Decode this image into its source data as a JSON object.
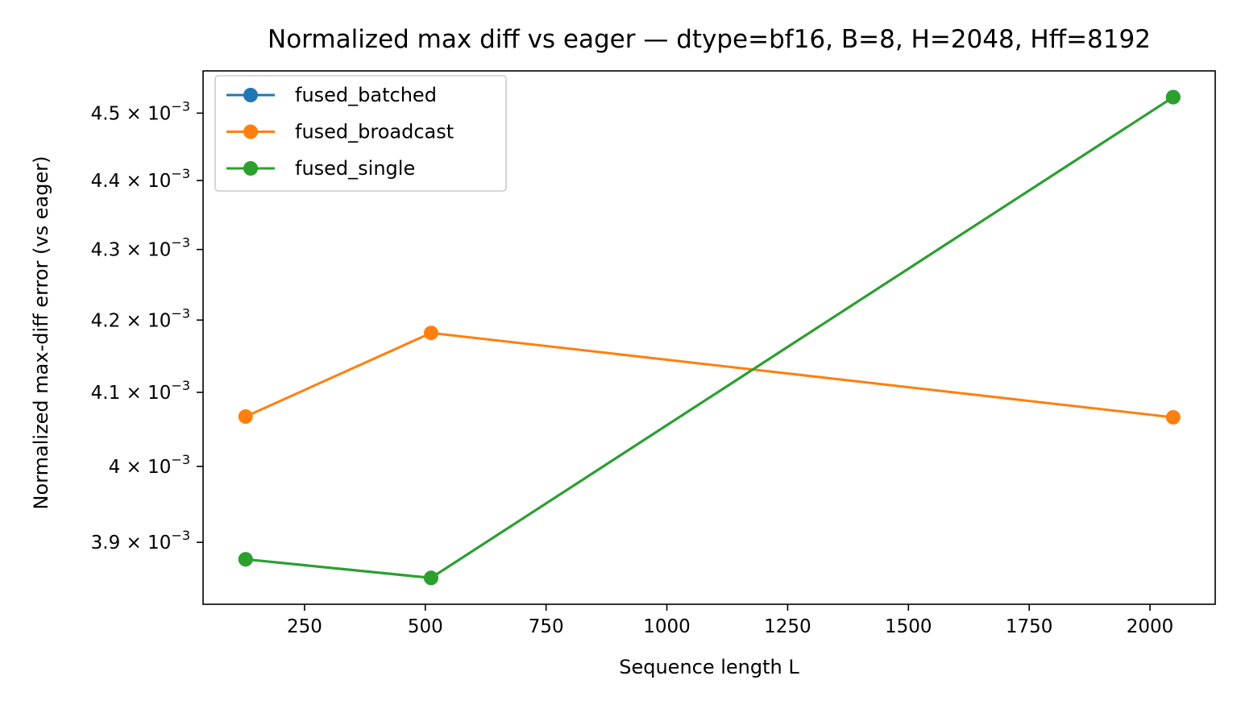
{
  "chart_data": {
    "type": "line",
    "title": "Normalized max diff vs eager — dtype=bf16, B=8, H=2048, Hff=8192",
    "xlabel": "Sequence length L",
    "ylabel": "Normalized max-diff error (vs eager)",
    "yscale": "log",
    "xlim": [
      40,
      2135
    ],
    "ylim": [
      0.0038203,
      0.0045638
    ],
    "grid": false,
    "legend_position": "top-left",
    "x_ticks": [
      250,
      500,
      750,
      1000,
      1250,
      1500,
      1750,
      2000
    ],
    "x_tick_labels": [
      "250",
      "500",
      "750",
      "1000",
      "1250",
      "1500",
      "1750",
      "2000"
    ],
    "y_ticks": [
      0.0039,
      0.004,
      0.0041,
      0.0042,
      0.0043,
      0.0044,
      0.0045
    ],
    "y_tick_labels": [
      {
        "mantissa": "3.9",
        "exponent": "−3"
      },
      {
        "mantissa": "4",
        "exponent": "−3"
      },
      {
        "mantissa": "4.1",
        "exponent": "−3"
      },
      {
        "mantissa": "4.2",
        "exponent": "−3"
      },
      {
        "mantissa": "4.3",
        "exponent": "−3"
      },
      {
        "mantissa": "4.4",
        "exponent": "−3"
      },
      {
        "mantissa": "4.5",
        "exponent": "−3"
      }
    ],
    "x": [
      128,
      512,
      2048
    ],
    "series": [
      {
        "name": "fused_batched",
        "color": "#1f77b4",
        "values": [
          0.003878,
          0.003854,
          0.004524
        ]
      },
      {
        "name": "fused_broadcast",
        "color": "#ff7f0e",
        "values": [
          0.004067,
          0.004182,
          0.004066
        ]
      },
      {
        "name": "fused_single",
        "color": "#2ca02c",
        "values": [
          0.003878,
          0.003854,
          0.004524
        ]
      }
    ]
  }
}
